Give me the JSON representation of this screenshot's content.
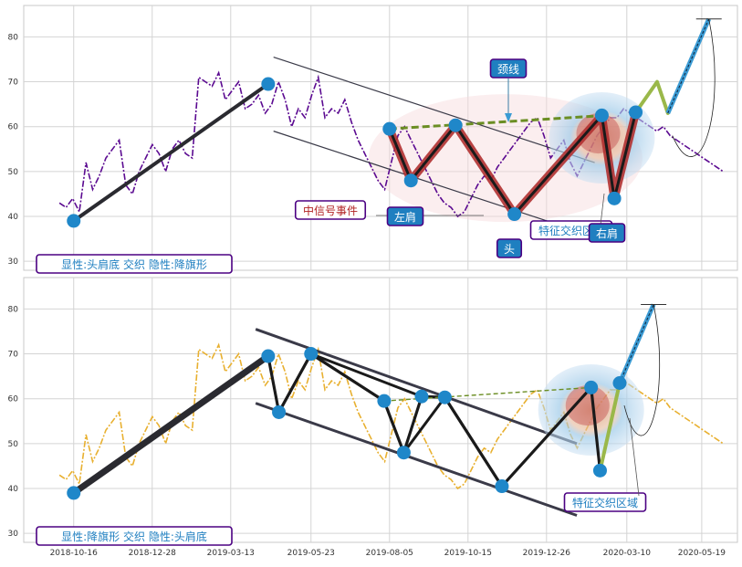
{
  "colors": {
    "top_series": "#5b0a91",
    "bottom_series": "#e8b030",
    "pattern_fill": "#b03030",
    "neckline": "#6b8e23",
    "point": "#1f87c9",
    "annotation_blue_bg": "#1f7fc0",
    "label_text_blue": "#1f7fc0",
    "label_text_red": "#b22222"
  },
  "chart_data": [
    {
      "type": "line",
      "panel": "top",
      "title": "",
      "xlabel": "",
      "ylabel": "",
      "ylim": [
        28,
        87
      ],
      "yticks": [
        "30",
        "40",
        "50",
        "60",
        "70",
        "80"
      ],
      "grid": true,
      "series": [
        {
          "style": "dash-dot",
          "color": "#5b0a91",
          "x": [
            0,
            4,
            8,
            12,
            16,
            20,
            24,
            28,
            32,
            36,
            40,
            44,
            48,
            52,
            56,
            60,
            64,
            68,
            72,
            76,
            80,
            84,
            88,
            92,
            96,
            100,
            104,
            108,
            112,
            116,
            120,
            124,
            128,
            132,
            136,
            140,
            144,
            148,
            152,
            156,
            160,
            164,
            168,
            172,
            176,
            180,
            184,
            188,
            192,
            196,
            200,
            204,
            208,
            212,
            216,
            220,
            224,
            228,
            232,
            236,
            240,
            244,
            248,
            252,
            256,
            260,
            264,
            268,
            272,
            276,
            280,
            284,
            288,
            292,
            296,
            300,
            304,
            308,
            312,
            316,
            320,
            324,
            328,
            332,
            336,
            340,
            344,
            348,
            352,
            356,
            360,
            364,
            368,
            372,
            376,
            380,
            384,
            388,
            392,
            396,
            400
          ],
          "values": [
            43,
            42,
            44,
            41,
            52,
            46,
            49,
            53,
            55,
            57,
            47,
            45,
            50,
            53,
            56,
            54,
            50,
            55,
            57,
            54,
            53,
            71,
            70,
            69,
            72,
            66,
            68,
            70,
            64,
            65,
            67,
            63,
            65,
            70,
            66,
            60,
            64,
            62,
            67,
            71,
            62,
            64,
            63,
            66,
            61,
            57,
            54,
            51,
            48,
            46,
            52,
            58,
            60,
            57,
            54,
            51,
            48,
            45,
            43,
            42,
            40,
            41,
            44,
            47,
            49,
            48,
            51,
            53,
            55,
            57,
            59,
            61,
            62,
            58,
            53,
            55,
            57,
            52,
            49,
            52,
            55,
            58,
            60,
            62,
            62,
            64,
            63,
            62,
            61,
            60,
            59,
            60,
            58,
            57,
            56,
            55,
            54,
            53,
            52,
            51,
            50
          ]
        }
      ],
      "pattern_points": [
        {
          "x": 8,
          "y": 39
        },
        {
          "x": 117,
          "y": 69.5
        },
        {
          "x": 185,
          "y": 59.5
        },
        {
          "x": 197,
          "y": 48
        },
        {
          "x": 222,
          "y": 60.3
        },
        {
          "x": 255,
          "y": 40.5
        },
        {
          "x": 304,
          "y": 62.5
        },
        {
          "x": 311,
          "y": 44
        },
        {
          "x": 323,
          "y": 63.2
        }
      ],
      "neckline": [
        [
          185,
          59.5
        ],
        [
          306,
          62.5
        ]
      ],
      "channel": [
        [
          [
            120,
            75.5
          ],
          [
            300,
            52
          ]
        ],
        [
          [
            120,
            59
          ],
          [
            300,
            35.5
          ]
        ]
      ],
      "projection": [
        [
          323,
          63.2
        ],
        [
          335,
          70
        ],
        [
          341,
          63
        ],
        [
          364,
          84
        ]
      ],
      "annotations": [
        {
          "text": "颈线"
        },
        {
          "text": "中信号事件"
        },
        {
          "text": "左肩"
        },
        {
          "text": "头"
        },
        {
          "text": "特征交织区域"
        },
        {
          "text": "右肩"
        },
        {
          "text": "显性:头肩底 交织 隐性:降旗形"
        }
      ]
    },
    {
      "type": "line",
      "panel": "bottom",
      "title": "",
      "xlabel": "",
      "ylabel": "",
      "ylim": [
        28,
        87
      ],
      "yticks": [
        "30",
        "40",
        "50",
        "60",
        "70",
        "80"
      ],
      "xticks": [
        "2018-10-16",
        "2018-12-28",
        "2019-03-13",
        "2019-05-23",
        "2019-08-05",
        "2019-10-15",
        "2019-12-26",
        "2020-03-10",
        "2020-05-19"
      ],
      "grid": true,
      "series": [
        {
          "style": "dash-dot",
          "color": "#e8b030",
          "x": [
            0,
            4,
            8,
            12,
            16,
            20,
            24,
            28,
            32,
            36,
            40,
            44,
            48,
            52,
            56,
            60,
            64,
            68,
            72,
            76,
            80,
            84,
            88,
            92,
            96,
            100,
            104,
            108,
            112,
            116,
            120,
            124,
            128,
            132,
            136,
            140,
            144,
            148,
            152,
            156,
            160,
            164,
            168,
            172,
            176,
            180,
            184,
            188,
            192,
            196,
            200,
            204,
            208,
            212,
            216,
            220,
            224,
            228,
            232,
            236,
            240,
            244,
            248,
            252,
            256,
            260,
            264,
            268,
            272,
            276,
            280,
            284,
            288,
            292,
            296,
            300,
            304,
            308,
            312,
            316,
            320,
            324,
            328,
            332,
            336,
            340,
            344,
            348,
            352,
            356,
            360,
            364,
            368,
            372,
            376,
            380,
            384,
            388,
            392,
            396,
            400
          ],
          "values": [
            43,
            42,
            44,
            41,
            52,
            46,
            49,
            53,
            55,
            57,
            47,
            45,
            50,
            53,
            56,
            54,
            50,
            55,
            57,
            54,
            53,
            71,
            70,
            69,
            72,
            66,
            68,
            70,
            64,
            65,
            67,
            63,
            65,
            70,
            66,
            60,
            64,
            62,
            67,
            71,
            62,
            64,
            63,
            66,
            61,
            57,
            54,
            51,
            48,
            46,
            52,
            58,
            60,
            57,
            54,
            51,
            48,
            45,
            43,
            42,
            40,
            41,
            44,
            47,
            49,
            48,
            51,
            53,
            55,
            57,
            59,
            61,
            62,
            58,
            53,
            55,
            57,
            52,
            49,
            52,
            55,
            58,
            60,
            62,
            62,
            64,
            63,
            62,
            61,
            60,
            59,
            60,
            58,
            57,
            56,
            55,
            54,
            53,
            52,
            51,
            50
          ]
        }
      ],
      "pattern_points": [
        {
          "x": 8,
          "y": 39
        },
        {
          "x": 117,
          "y": 69.5
        },
        {
          "x": 123,
          "y": 57
        },
        {
          "x": 141,
          "y": 70
        },
        {
          "x": 182,
          "y": 59.5
        },
        {
          "x": 193,
          "y": 48
        },
        {
          "x": 203,
          "y": 60.5
        },
        {
          "x": 216,
          "y": 60.3
        },
        {
          "x": 248,
          "y": 40.5
        },
        {
          "x": 298,
          "y": 62.5
        },
        {
          "x": 303,
          "y": 44
        },
        {
          "x": 314,
          "y": 63.5
        }
      ],
      "neckline": [
        [
          182,
          59.5
        ],
        [
          298,
          62.5
        ]
      ],
      "channel": [
        [
          [
            110,
            75.5
          ],
          [
            290,
            50
          ]
        ],
        [
          [
            110,
            59
          ],
          [
            290,
            34
          ]
        ]
      ],
      "projection": [
        [
          303,
          44
        ],
        [
          314,
          63.5
        ],
        [
          333,
          81
        ]
      ],
      "annotations": [
        {
          "text": "特征交织区域"
        },
        {
          "text": "显性:降旗形 交织 隐性:头肩底"
        }
      ]
    }
  ]
}
